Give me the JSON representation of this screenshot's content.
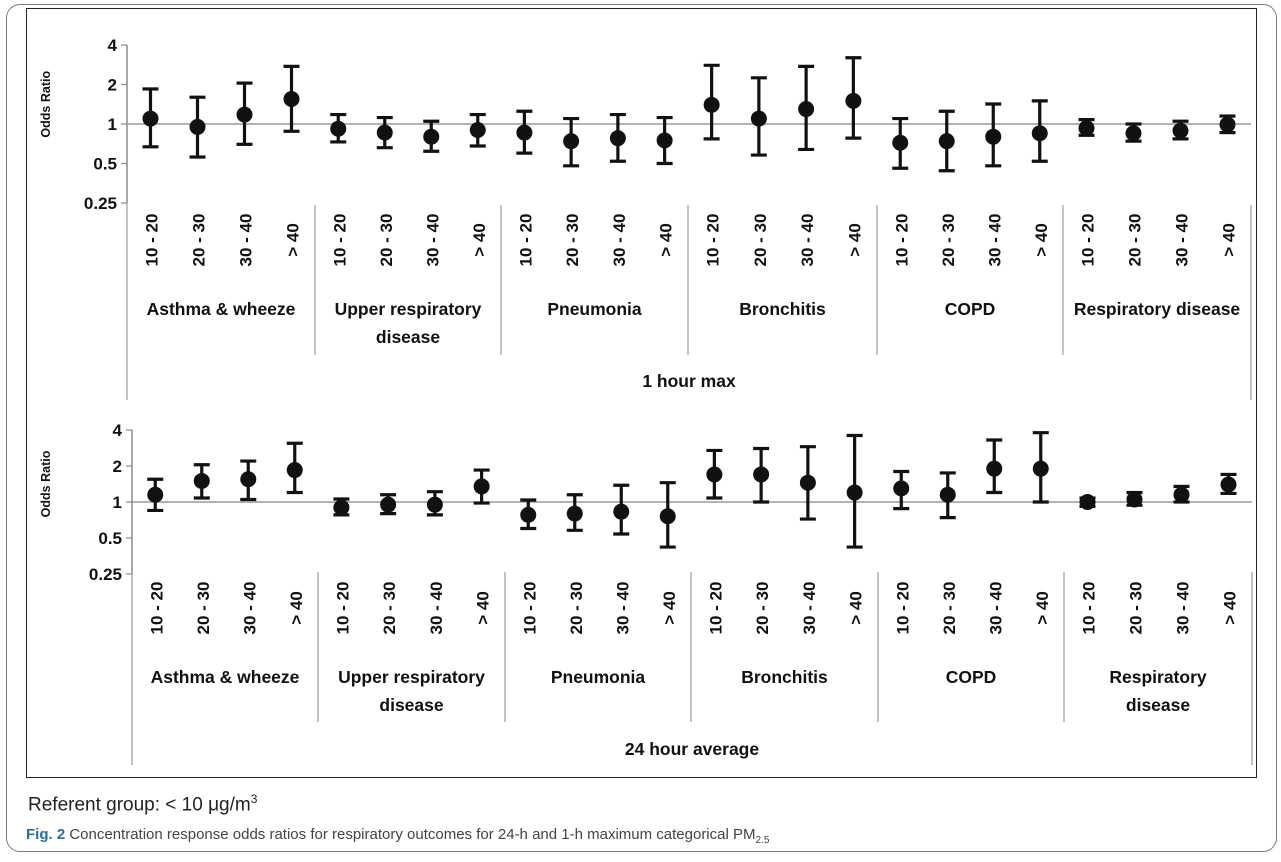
{
  "referent": {
    "text": "Referent group: < 10 μg/m",
    "sup": "3"
  },
  "caption": {
    "label": "Fig. 2",
    "text": " Concentration response odds ratios for respiratory outcomes for 24-h and 1-h maximum categorical PM",
    "sub": "2.5"
  },
  "chart_data": [
    {
      "type": "scatter",
      "error_bars": true,
      "title": "1 hour max",
      "ylabel": "Odds Ratio",
      "yscale": "log2",
      "ylim": [
        0.25,
        4
      ],
      "yticks": [
        "4",
        "2",
        "1",
        "0.5",
        "0.25"
      ],
      "reference_line": 1,
      "categories": [
        "10 - 20",
        "20 - 30",
        "30 - 40",
        "> 40"
      ],
      "groups": [
        {
          "name": "Asthma & wheeze",
          "label_lines": [
            "Asthma & wheeze"
          ],
          "points": [
            {
              "category": "10 - 20",
              "or": 1.1,
              "low": 0.67,
              "high": 1.85
            },
            {
              "category": "20 - 30",
              "or": 0.95,
              "low": 0.56,
              "high": 1.6
            },
            {
              "category": "30 - 40",
              "or": 1.18,
              "low": 0.7,
              "high": 2.05
            },
            {
              "category": "> 40",
              "or": 1.55,
              "low": 0.88,
              "high": 2.75
            }
          ]
        },
        {
          "name": "Upper respiratory disease",
          "label_lines": [
            "Upper respiratory",
            "disease"
          ],
          "points": [
            {
              "category": "10 - 20",
              "or": 0.92,
              "low": 0.73,
              "high": 1.18
            },
            {
              "category": "20 - 30",
              "or": 0.86,
              "low": 0.66,
              "high": 1.12
            },
            {
              "category": "30 - 40",
              "or": 0.8,
              "low": 0.62,
              "high": 1.05
            },
            {
              "category": "> 40",
              "or": 0.9,
              "low": 0.68,
              "high": 1.18
            }
          ]
        },
        {
          "name": "Pneumonia",
          "label_lines": [
            "Pneumonia"
          ],
          "points": [
            {
              "category": "10 - 20",
              "or": 0.86,
              "low": 0.6,
              "high": 1.25
            },
            {
              "category": "20 - 30",
              "or": 0.74,
              "low": 0.48,
              "high": 1.1
            },
            {
              "category": "30 - 40",
              "or": 0.78,
              "low": 0.52,
              "high": 1.18
            },
            {
              "category": "> 40",
              "or": 0.75,
              "low": 0.5,
              "high": 1.12
            }
          ]
        },
        {
          "name": "Bronchitis",
          "label_lines": [
            "Bronchitis"
          ],
          "points": [
            {
              "category": "10 - 20",
              "or": 1.4,
              "low": 0.77,
              "high": 2.8
            },
            {
              "category": "20 - 30",
              "or": 1.1,
              "low": 0.58,
              "high": 2.25
            },
            {
              "category": "30 - 40",
              "or": 1.3,
              "low": 0.64,
              "high": 2.75
            },
            {
              "category": "> 40",
              "or": 1.5,
              "low": 0.78,
              "high": 3.2
            }
          ]
        },
        {
          "name": "COPD",
          "label_lines": [
            "COPD"
          ],
          "points": [
            {
              "category": "10 - 20",
              "or": 0.72,
              "low": 0.46,
              "high": 1.1
            },
            {
              "category": "20 - 30",
              "or": 0.74,
              "low": 0.44,
              "high": 1.25
            },
            {
              "category": "30 - 40",
              "or": 0.8,
              "low": 0.48,
              "high": 1.42
            },
            {
              "category": "> 40",
              "or": 0.85,
              "low": 0.52,
              "high": 1.5
            }
          ]
        },
        {
          "name": "Respiratory disease",
          "label_lines": [
            "Respiratory disease"
          ],
          "points": [
            {
              "category": "10 - 20",
              "or": 0.93,
              "low": 0.82,
              "high": 1.08
            },
            {
              "category": "20 - 30",
              "or": 0.85,
              "low": 0.74,
              "high": 1.0
            },
            {
              "category": "30 - 40",
              "or": 0.89,
              "low": 0.77,
              "high": 1.05
            },
            {
              "category": "> 40",
              "or": 0.99,
              "low": 0.86,
              "high": 1.15
            }
          ]
        }
      ]
    },
    {
      "type": "scatter",
      "error_bars": true,
      "title": "24 hour average",
      "ylabel": "Odds Ratio",
      "yscale": "log2",
      "ylim": [
        0.25,
        4
      ],
      "yticks": [
        "4",
        "2",
        "1",
        "0.5",
        "0.25"
      ],
      "reference_line": 1,
      "categories": [
        "10 - 20",
        "20 - 30",
        "30 - 40",
        "> 40"
      ],
      "groups": [
        {
          "name": "Asthma & wheeze",
          "label_lines": [
            "Asthma & wheeze"
          ],
          "points": [
            {
              "category": "10 - 20",
              "or": 1.15,
              "low": 0.85,
              "high": 1.55
            },
            {
              "category": "20 - 30",
              "or": 1.5,
              "low": 1.08,
              "high": 2.05
            },
            {
              "category": "30 - 40",
              "or": 1.55,
              "low": 1.05,
              "high": 2.2
            },
            {
              "category": "> 40",
              "or": 1.85,
              "low": 1.2,
              "high": 3.1
            }
          ]
        },
        {
          "name": "Upper respiratory disease",
          "label_lines": [
            "Upper respiratory",
            "disease"
          ],
          "points": [
            {
              "category": "10 - 20",
              "or": 0.9,
              "low": 0.78,
              "high": 1.06
            },
            {
              "category": "20 - 30",
              "or": 0.95,
              "low": 0.8,
              "high": 1.15
            },
            {
              "category": "30 - 40",
              "or": 0.95,
              "low": 0.78,
              "high": 1.22
            },
            {
              "category": "> 40",
              "or": 1.35,
              "low": 0.98,
              "high": 1.85
            }
          ]
        },
        {
          "name": "Pneumonia",
          "label_lines": [
            "Pneumonia"
          ],
          "points": [
            {
              "category": "10 - 20",
              "or": 0.78,
              "low": 0.6,
              "high": 1.04
            },
            {
              "category": "20 - 30",
              "or": 0.8,
              "low": 0.58,
              "high": 1.15
            },
            {
              "category": "30 - 40",
              "or": 0.83,
              "low": 0.54,
              "high": 1.38
            },
            {
              "category": "> 40",
              "or": 0.76,
              "low": 0.42,
              "high": 1.45
            }
          ]
        },
        {
          "name": "Bronchitis",
          "label_lines": [
            "Bronchitis"
          ],
          "points": [
            {
              "category": "10 - 20",
              "or": 1.7,
              "low": 1.08,
              "high": 2.7
            },
            {
              "category": "20 - 30",
              "or": 1.7,
              "low": 1.0,
              "high": 2.8
            },
            {
              "category": "30 - 40",
              "or": 1.45,
              "low": 0.72,
              "high": 2.9
            },
            {
              "category": "> 40",
              "or": 1.2,
              "low": 0.42,
              "high": 3.6
            }
          ]
        },
        {
          "name": "COPD",
          "label_lines": [
            "COPD"
          ],
          "points": [
            {
              "category": "10 - 20",
              "or": 1.3,
              "low": 0.88,
              "high": 1.8
            },
            {
              "category": "20 - 30",
              "or": 1.15,
              "low": 0.74,
              "high": 1.75
            },
            {
              "category": "30 - 40",
              "or": 1.9,
              "low": 1.2,
              "high": 3.3
            },
            {
              "category": "> 40",
              "or": 1.9,
              "low": 1.0,
              "high": 3.8
            }
          ]
        },
        {
          "name": "Respiratory disease",
          "label_lines": [
            "Respiratory",
            "disease"
          ],
          "points": [
            {
              "category": "10 - 20",
              "or": 1.0,
              "low": 0.92,
              "high": 1.08
            },
            {
              "category": "20 - 30",
              "or": 1.05,
              "low": 0.94,
              "high": 1.2
            },
            {
              "category": "30 - 40",
              "or": 1.15,
              "low": 1.0,
              "high": 1.35
            },
            {
              "category": "> 40",
              "or": 1.4,
              "low": 1.18,
              "high": 1.7
            }
          ]
        }
      ]
    }
  ]
}
